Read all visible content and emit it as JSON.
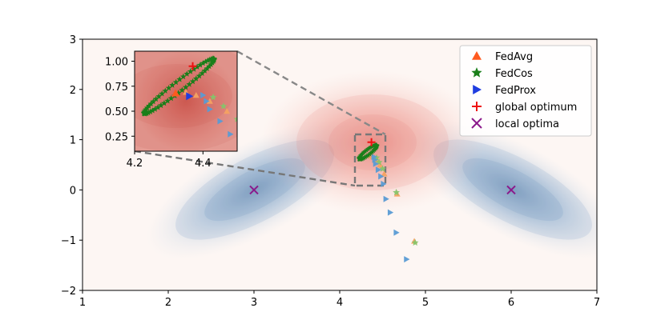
{
  "chart_data": {
    "type": "scatter",
    "title": "",
    "xlabel": "",
    "ylabel": "",
    "xlim": [
      1,
      7
    ],
    "ylim": [
      -2,
      3
    ],
    "x_ticks": [
      1,
      2,
      3,
      4,
      5,
      6,
      7
    ],
    "y_ticks": [
      -2,
      -1,
      0,
      1,
      2,
      3
    ],
    "x_tick_labels": [
      "1",
      "2",
      "3",
      "4",
      "5",
      "6",
      "7"
    ],
    "y_tick_labels": [
      "−2",
      "−1",
      "0",
      "1",
      "2",
      "3"
    ],
    "legend_position": "top-right",
    "colors": {
      "fedavg": "#ff5a1f",
      "fedcos": "#1a7f1a",
      "fedprox": "#1f3de0",
      "global_optimum": "#ee1111",
      "local_optima": "#8b1a8b",
      "traj_fedavg": "#f4a261",
      "traj_fedcos": "#86c46a",
      "traj_fedprox": "#5a9bd4",
      "blue_field": "#4a7fb5",
      "red_field": "#e8736b",
      "background": "#fdf6f3"
    },
    "legend": [
      {
        "key": "fedavg",
        "label": "FedAvg",
        "marker": "triangle-up"
      },
      {
        "key": "fedcos",
        "label": "FedCos",
        "marker": "star"
      },
      {
        "key": "fedprox",
        "label": "FedProx",
        "marker": "triangle-right"
      },
      {
        "key": "global_optimum",
        "label": "global optimum",
        "marker": "plus"
      },
      {
        "key": "local_optima",
        "label": "local optima",
        "marker": "x"
      }
    ],
    "global_optimum": {
      "x": 4.37,
      "y": 0.95
    },
    "local_optima": [
      {
        "x": 3.0,
        "y": 0.0
      },
      {
        "x": 6.0,
        "y": 0.0
      }
    ],
    "series": [
      {
        "name": "FedAvg trajectory",
        "marker": "triangle-up",
        "x": [
          4.87,
          4.67,
          4.52,
          4.47,
          4.42,
          4.38,
          4.35
        ],
        "y": [
          -1.02,
          -0.08,
          0.32,
          0.5,
          0.6,
          0.66,
          0.69
        ]
      },
      {
        "name": "FedCos trajectory",
        "marker": "star",
        "x": [
          4.88,
          4.66,
          4.5,
          4.46,
          4.43
        ],
        "y": [
          -1.05,
          -0.05,
          0.42,
          0.55,
          0.64
        ]
      },
      {
        "name": "FedProx trajectory",
        "marker": "triangle-right",
        "x": [
          4.78,
          4.66,
          4.59,
          4.54,
          4.51,
          4.48,
          4.45,
          4.42,
          4.41,
          4.4
        ],
        "y": [
          -1.38,
          -0.85,
          -0.45,
          -0.18,
          0.12,
          0.27,
          0.4,
          0.52,
          0.6,
          0.66
        ]
      },
      {
        "name": "Converged cluster",
        "marker": "star",
        "note": "ellipse of stars near optimum",
        "center": [
          4.33,
          0.75
        ],
        "radii": [
          0.13,
          0.05
        ],
        "angle_deg": -38
      }
    ],
    "inset": {
      "xlim": [
        4.2,
        4.5
      ],
      "ylim": [
        0.1,
        1.1
      ],
      "x_ticks": [
        4.2,
        4.4
      ],
      "x_tick_labels": [
        "4.2",
        "4.4"
      ],
      "y_ticks": [
        0.25,
        0.5,
        0.75,
        1.0
      ],
      "y_tick_labels": [
        "0.25",
        "0.50",
        "0.75",
        "1.00"
      ],
      "zoom_box": {
        "xlim": [
          4.2,
          4.55
        ],
        "ylim": [
          0.1,
          1.1
        ]
      }
    }
  }
}
